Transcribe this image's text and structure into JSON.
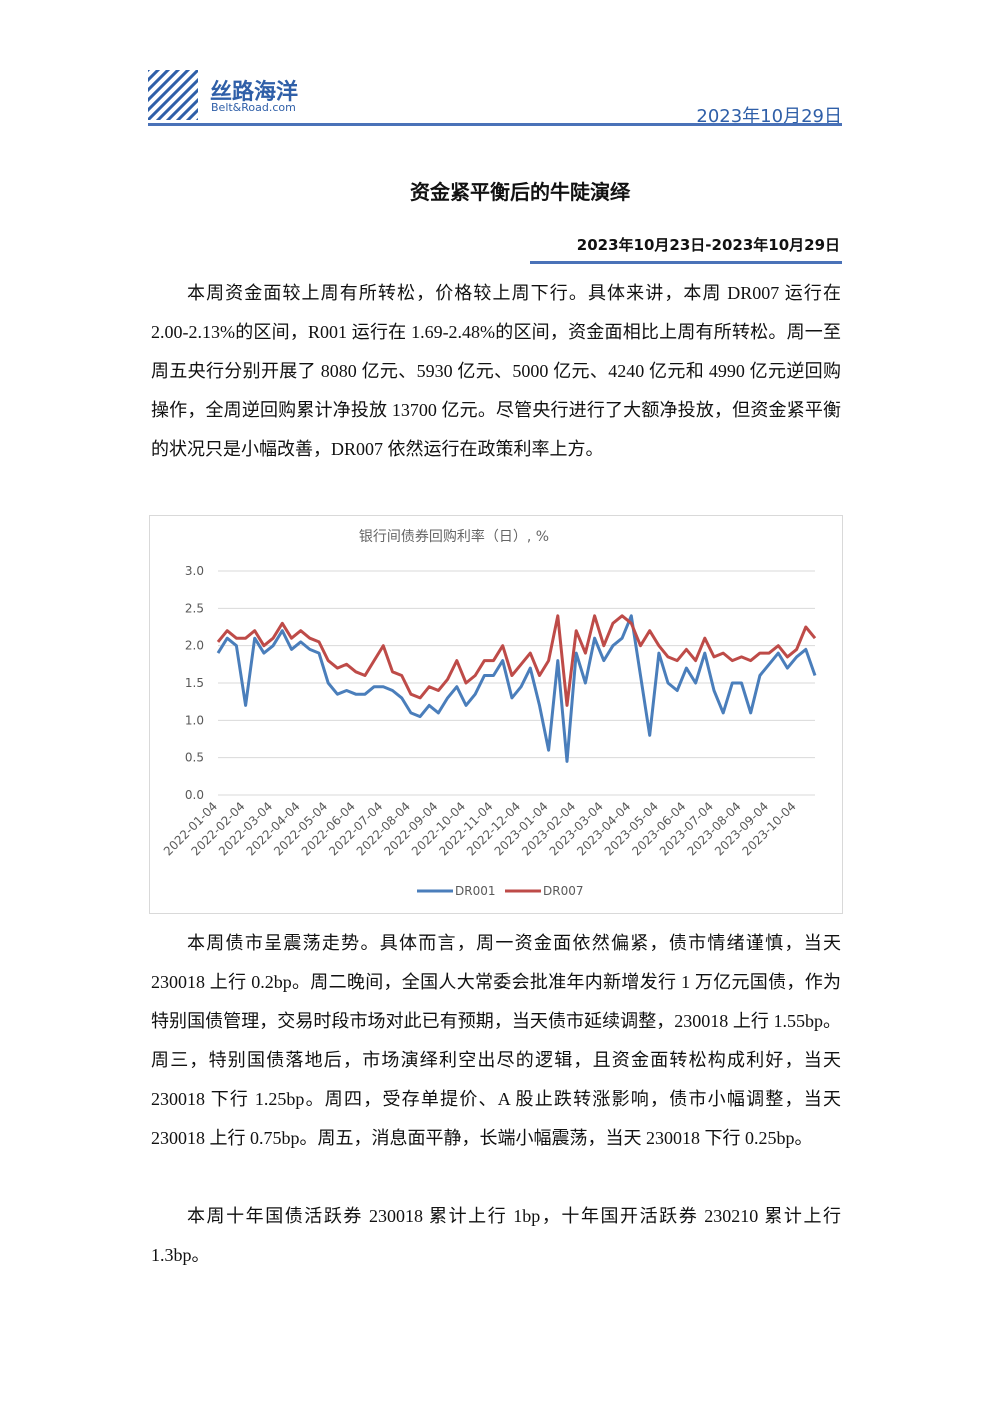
{
  "header": {
    "logo_cn": "丝路海洋",
    "logo_en": "Belt&Road.com",
    "date": "2023年10月29日"
  },
  "title": "资金紧平衡后的牛陡演绎",
  "date_range": "2023年10月23日-2023年10月29日",
  "paragraphs": [
    "本周资金面较上周有所转松，价格较上周下行。具体来讲，本周 DR007 运行在 2.00-2.13%的区间，R001 运行在 1.69-2.48%的区间，资金面相比上周有所转松。周一至周五央行分别开展了 8080 亿元、5930 亿元、5000 亿元、4240 亿元和 4990 亿元逆回购操作，全周逆回购累计净投放 13700 亿元。尽管央行进行了大额净投放，但资金紧平衡的状况只是小幅改善，DR007 依然运行在政策利率上方。",
    "本周债市呈震荡走势。具体而言，周一资金面依然偏紧，债市情绪谨慎，当天 230018 上行 0.2bp。周二晚间，全国人大常委会批准年内新增发行 1 万亿元国债，作为特别国债管理，交易时段市场对此已有预期，当天债市延续调整，230018 上行 1.55bp。周三，特别国债落地后，市场演绎利空出尽的逻辑，且资金面转松构成利好，当天 230018 下行 1.25bp。周四，受存单提价、A 股止跌转涨影响，债市小幅调整，当天 230018 上行 0.75bp。周五，消息面平静，长端小幅震荡，当天 230018 下行 0.25bp。",
    "本周十年国债活跃券 230018 累计上行 1bp，十年国开活跃券 230210 累计上行 1.3bp。"
  ],
  "chart_data": {
    "type": "line",
    "title": "银行间债券回购利率（日）, %",
    "categories": [
      "2022-01-04",
      null,
      null,
      "2022-02-04",
      null,
      null,
      "2022-03-04",
      null,
      null,
      "2022-04-04",
      null,
      null,
      "2022-05-04",
      null,
      null,
      "2022-06-04",
      null,
      null,
      "2022-07-04",
      null,
      null,
      "2022-08-04",
      null,
      null,
      "2022-09-04",
      null,
      null,
      "2022-10-04",
      null,
      null,
      "2022-11-04",
      null,
      null,
      "2022-12-04",
      null,
      null,
      "2023-01-04",
      null,
      null,
      "2023-02-04",
      null,
      null,
      "2023-03-04",
      null,
      null,
      "2023-04-04",
      null,
      null,
      "2023-05-04",
      null,
      null,
      "2023-06-04",
      null,
      null,
      "2023-07-04",
      null,
      null,
      "2023-08-04",
      null,
      null,
      "2023-09-04",
      null,
      null,
      "2023-10-04",
      null,
      null
    ],
    "series": [
      {
        "name": "DR001",
        "color": "#4a7ebb",
        "values": [
          1.9,
          2.1,
          2.0,
          1.2,
          2.1,
          1.9,
          2.0,
          2.2,
          1.95,
          2.05,
          1.95,
          1.9,
          1.5,
          1.35,
          1.4,
          1.35,
          1.35,
          1.45,
          1.45,
          1.4,
          1.3,
          1.1,
          1.05,
          1.2,
          1.1,
          1.3,
          1.45,
          1.2,
          1.35,
          1.6,
          1.6,
          1.8,
          1.3,
          1.45,
          1.7,
          1.2,
          0.6,
          1.8,
          0.45,
          1.9,
          1.5,
          2.1,
          1.8,
          2.0,
          2.1,
          2.4,
          1.6,
          0.8,
          1.9,
          1.5,
          1.4,
          1.7,
          1.5,
          1.9,
          1.4,
          1.1,
          1.5,
          1.5,
          1.1,
          1.6,
          1.75,
          1.9,
          1.7,
          1.85,
          1.95,
          1.6
        ]
      },
      {
        "name": "DR007",
        "color": "#be4b48",
        "values": [
          2.05,
          2.2,
          2.1,
          2.1,
          2.2,
          2.0,
          2.1,
          2.3,
          2.1,
          2.2,
          2.1,
          2.05,
          1.8,
          1.7,
          1.75,
          1.65,
          1.6,
          1.8,
          2.0,
          1.65,
          1.6,
          1.35,
          1.3,
          1.45,
          1.4,
          1.55,
          1.8,
          1.5,
          1.6,
          1.8,
          1.8,
          2.0,
          1.6,
          1.75,
          1.9,
          1.6,
          1.8,
          2.4,
          1.2,
          2.2,
          1.9,
          2.4,
          2.0,
          2.3,
          2.4,
          2.3,
          2.0,
          2.2,
          2.0,
          1.85,
          1.8,
          1.95,
          1.8,
          2.1,
          1.85,
          1.9,
          1.8,
          1.85,
          1.8,
          1.9,
          1.9,
          2.0,
          1.85,
          1.95,
          2.25,
          2.1
        ]
      }
    ],
    "ylim": [
      0,
      3
    ],
    "yticks": [
      {
        "value": 0,
        "label": "0.0"
      },
      0.5,
      {
        "value": 1,
        "label": "1.0"
      },
      1.5,
      {
        "value": 2,
        "label": "2.0"
      },
      2.5,
      {
        "value": 3,
        "label": "3.0"
      }
    ],
    "grid": true,
    "legend": "bottom"
  }
}
